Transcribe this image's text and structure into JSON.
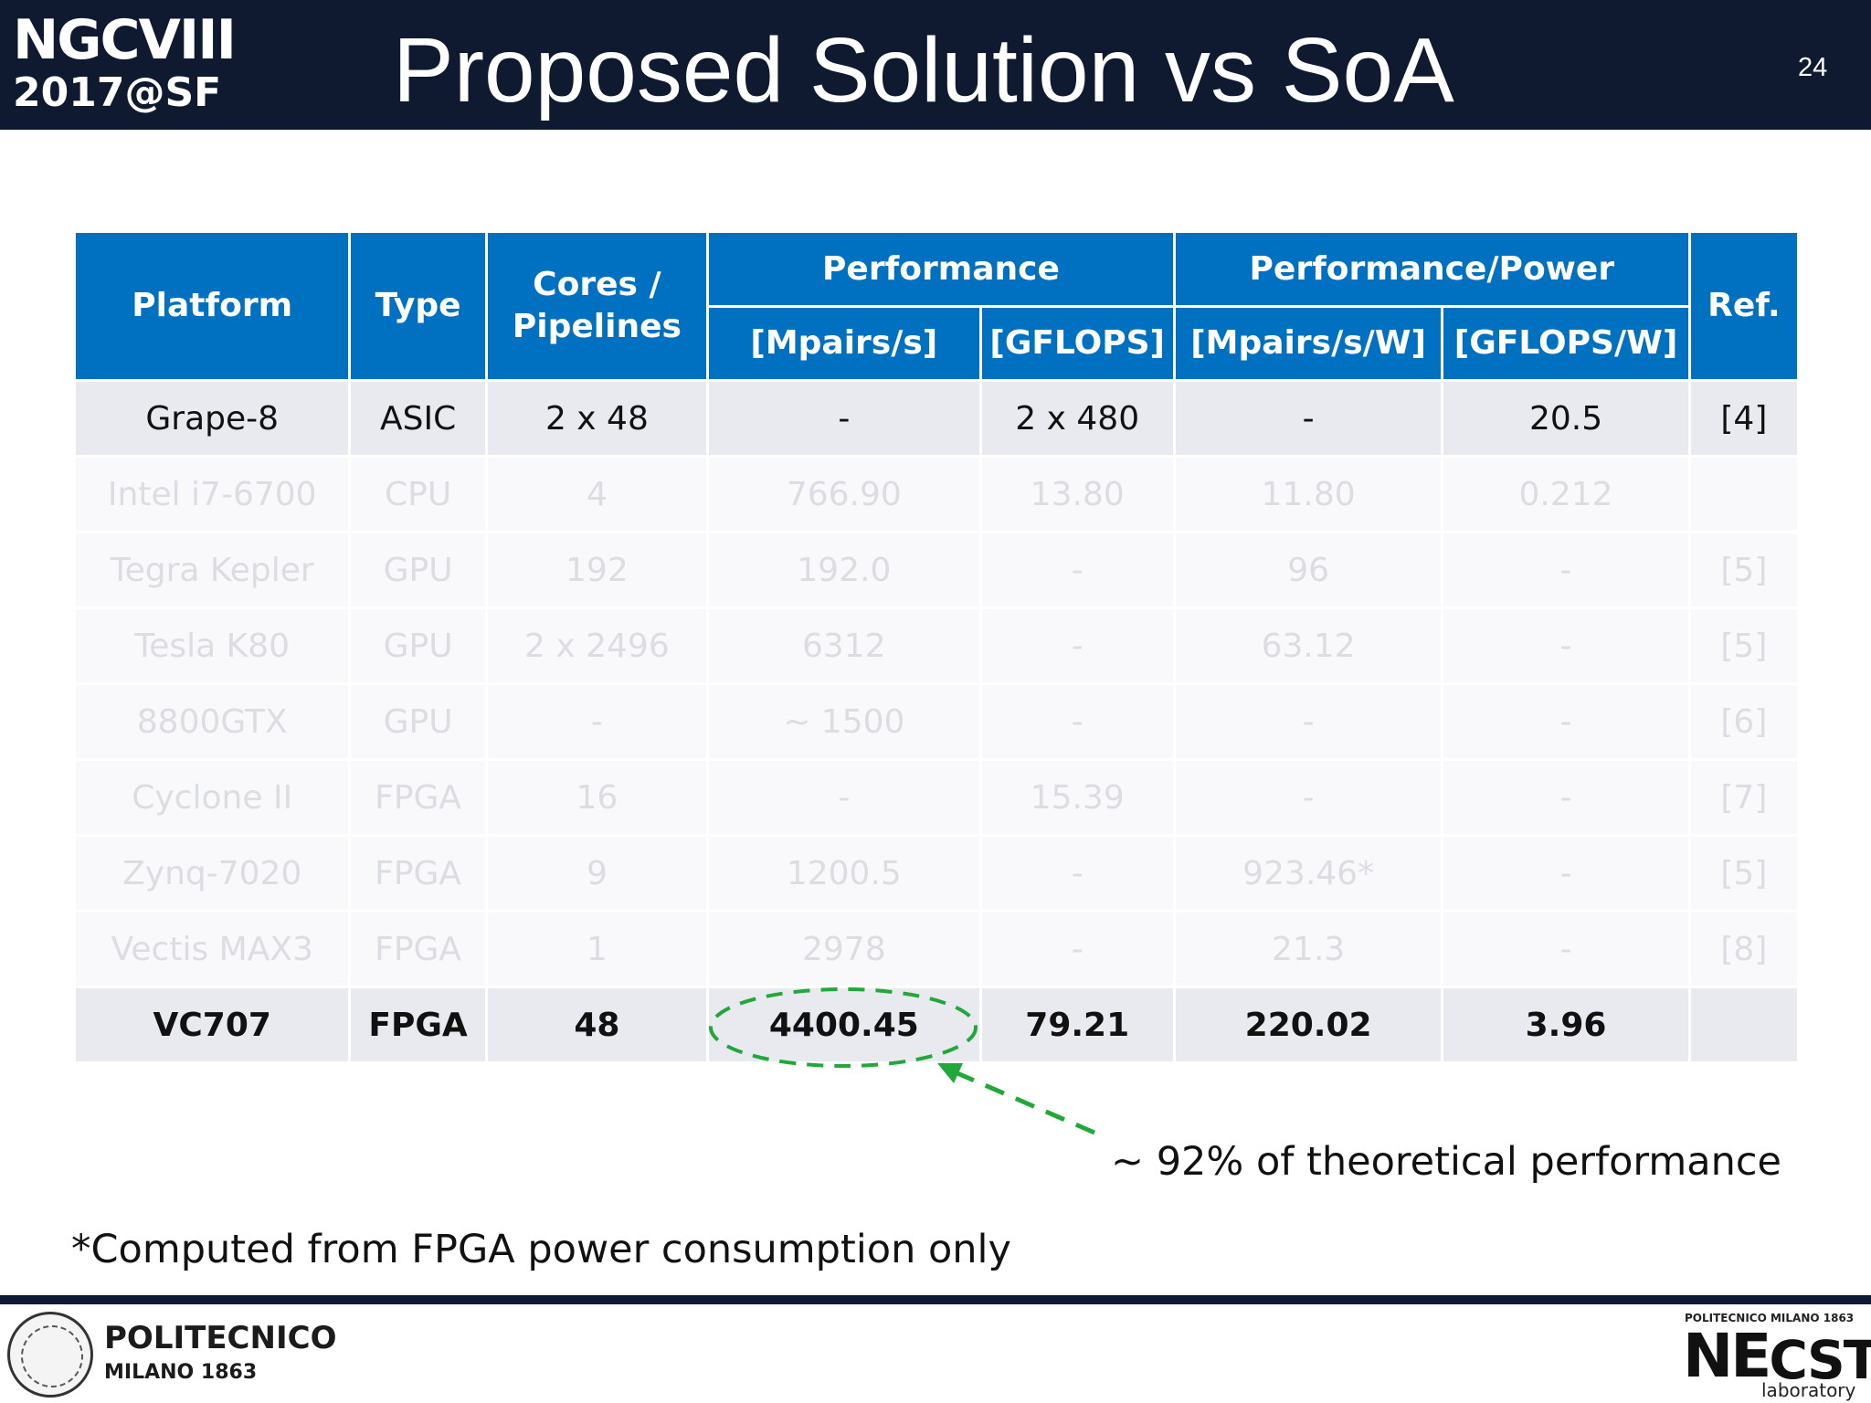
{
  "header": {
    "logo_line1": "NGCVIII",
    "logo_line2": "2017@SF",
    "title": "Proposed Solution vs SoA",
    "page_number": "24"
  },
  "table": {
    "headers_top": {
      "platform": "Platform",
      "type": "Type",
      "cores": "Cores / Pipelines",
      "performance": "Performance",
      "performance_power": "Performance/Power",
      "ref": "Ref."
    },
    "headers_sub": [
      "[Mpairs/s]",
      "[GFLOPS]",
      "[Mpairs/s/W]",
      "[GFLOPS/W]"
    ],
    "rows": [
      [
        "Grape-8",
        "ASIC",
        "2 x 48",
        "-",
        "2 x 480",
        "-",
        "20.5",
        "[4]"
      ],
      [
        "Intel i7-6700",
        "CPU",
        "4",
        "766.90",
        "13.80",
        "11.80",
        "0.212",
        ""
      ],
      [
        "Tegra Kepler",
        "GPU",
        "192",
        "192.0",
        "-",
        "96",
        "-",
        "[5]"
      ],
      [
        "Tesla K80",
        "GPU",
        "2 x 2496",
        "6312",
        "-",
        "63.12",
        "-",
        "[5]"
      ],
      [
        "8800GTX",
        "GPU",
        "-",
        "~ 1500",
        "-",
        "-",
        "-",
        "[6]"
      ],
      [
        "Cyclone II",
        "FPGA",
        "16",
        "-",
        "15.39",
        "-",
        "-",
        "[7]"
      ],
      [
        "Zynq-7020",
        "FPGA",
        "9",
        "1200.5",
        "-",
        "923.46*",
        "-",
        "[5]"
      ],
      [
        "Vectis MAX3",
        "FPGA",
        "1",
        "2978",
        "-",
        "21.3",
        "-",
        "[8]"
      ],
      [
        "VC707",
        "FPGA",
        "48",
        "4400.45",
        "79.21",
        "220.02",
        "3.96",
        ""
      ]
    ]
  },
  "annotation": "~ 92% of theoretical performance",
  "footnote": "*Computed from FPGA power consumption only",
  "footer": {
    "polimi_name": "POLITECNICO",
    "polimi_sub": "MILANO 1863",
    "necst_top": "POLITECNICO MILANO 1863",
    "necst_ne": "NE",
    "necst_cst": "CST",
    "necst_lab": "laboratory"
  },
  "colors": {
    "header_bg": "#0f1930",
    "table_header": "#0070c0",
    "highlight_green": "#22a83a"
  }
}
